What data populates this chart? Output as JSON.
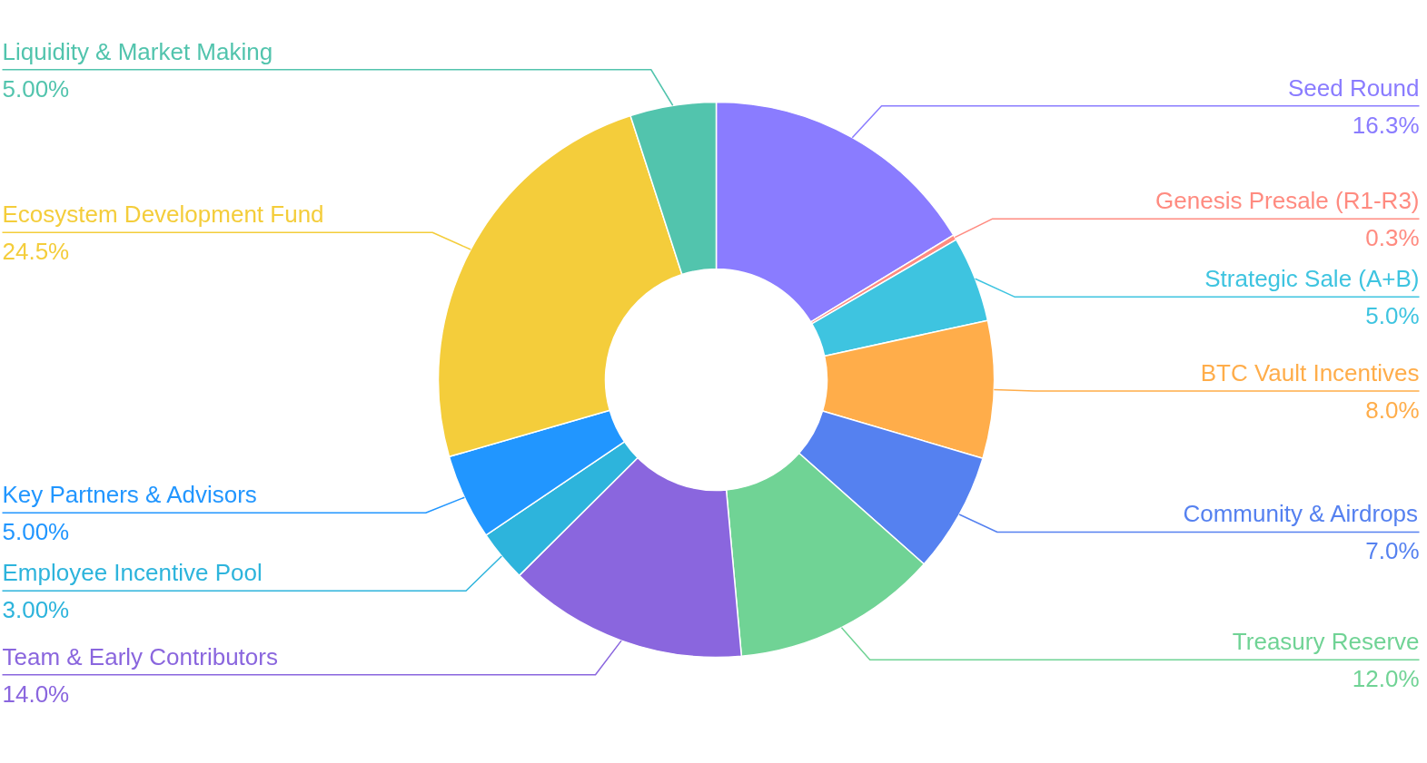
{
  "chart_data": {
    "type": "donut",
    "categories": [
      "Seed Round",
      "Genesis Presale (R1-R3)",
      "Strategic Sale (A+B)",
      "BTC Vault Incentives",
      "Community & Airdrops",
      "Treasury Reserve",
      "Team & Early Contributors",
      "Employee Incentive Pool",
      "Key Partners & Advisors",
      "Ecosystem Development Fund",
      "Liquidity & Market Making"
    ],
    "values": [
      16.3,
      0.3,
      5.0,
      8.0,
      7.0,
      12.0,
      14.0,
      3.0,
      5.0,
      24.5,
      5.0
    ],
    "value_labels": [
      "16.3%",
      "0.3%",
      "5.0%",
      "8.0%",
      "7.0%",
      "12.0%",
      "14.0%",
      "3.00%",
      "5.00%",
      "24.5%",
      "5.00%"
    ],
    "colors": [
      "#8a7cff",
      "#ff8b80",
      "#3ec4e0",
      "#ffad4a",
      "#5581f0",
      "#70d395",
      "#8a66de",
      "#2db4dc",
      "#2196ff",
      "#f4cd3b",
      "#52c4ad"
    ]
  }
}
